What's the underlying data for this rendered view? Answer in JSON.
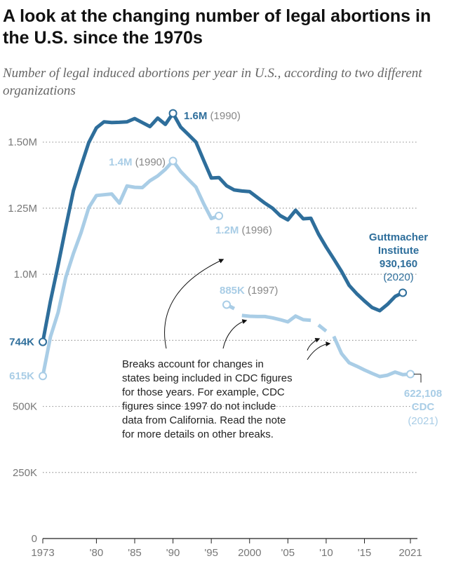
{
  "title": "A look at the changing number of legal abortions in the U.S. since the 1970s",
  "subtitle": "Number of legal induced abortions per year in U.S., according to two different organizations",
  "colors": {
    "guttmacher": "#2e6e9b",
    "cdc": "#a9cde6",
    "grid": "#999999",
    "axis": "#777777",
    "label_gray": "#888888",
    "text": "#222222"
  },
  "chart_data": {
    "type": "line",
    "xlim": [
      1973,
      2021
    ],
    "ylim": [
      0,
      1600000
    ],
    "ylabel": "",
    "xlabel": "",
    "y_ticks": [
      0,
      250000,
      500000,
      750000,
      1000000,
      1250000,
      1500000
    ],
    "y_tick_labels": [
      "0",
      "250K",
      "500K",
      "",
      "1.0M",
      "1.25M",
      "1.50M"
    ],
    "x_ticks": [
      1973,
      1980,
      1985,
      1990,
      1995,
      2000,
      2005,
      2010,
      2015,
      2021
    ],
    "x_tick_labels": [
      "1973",
      "'80",
      "'85",
      "'90",
      "'95",
      "2000",
      "'05",
      "'10",
      "'15",
      "2021"
    ],
    "grid": true,
    "series": [
      {
        "name": "Guttmacher Institute",
        "color": "#2e6e9b",
        "segments": [
          {
            "x": [
              1973,
              1974,
              1975,
              1976,
              1977,
              1978,
              1979,
              1980,
              1981,
              1982,
              1983,
              1984,
              1985,
              1986,
              1987,
              1988,
              1989,
              1990,
              1991,
              1992,
              1993,
              1994,
              1995,
              1996,
              1997,
              1998,
              1999,
              2000,
              2001,
              2002,
              2003,
              2004,
              2005,
              2006,
              2007,
              2008,
              2009,
              2010,
              2011,
              2012,
              2013,
              2014,
              2015,
              2016,
              2017,
              2018,
              2019,
              2020
            ],
            "y": [
              744000,
              898000,
              1034000,
              1179000,
              1317000,
              1410000,
              1498000,
              1554000,
              1577000,
              1574000,
              1575000,
              1577000,
              1589000,
              1574000,
              1559000,
              1591000,
              1567000,
              1609000,
              1557000,
              1529000,
              1500000,
              1431000,
              1364000,
              1366000,
              1335000,
              1319000,
              1315000,
              1313000,
              1291000,
              1269000,
              1250000,
              1222000,
              1206000,
              1242000,
              1210000,
              1212000,
              1152000,
              1103000,
              1058000,
              1011000,
              958000,
              926000,
              899000,
              874000,
              862000,
              886000,
              916000,
              930160
            ]
          }
        ]
      },
      {
        "name": "CDC",
        "color": "#a9cde6",
        "segments": [
          {
            "x": [
              1973,
              1974,
              1975,
              1976,
              1977,
              1978,
              1979,
              1980,
              1981,
              1982,
              1983,
              1984,
              1985,
              1986,
              1987,
              1988,
              1989,
              1990,
              1991,
              1992,
              1993,
              1994,
              1995,
              1996
            ],
            "y": [
              615000,
              763000,
              855000,
              989000,
              1079000,
              1158000,
              1252000,
              1298000,
              1301000,
              1304000,
              1269000,
              1334000,
              1329000,
              1328000,
              1354000,
              1372000,
              1397000,
              1429000,
              1389000,
              1359000,
              1330000,
              1267000,
              1211000,
              1221000
            ]
          },
          {
            "x": [
              1997,
              1998
            ],
            "y": [
              885000,
              870000
            ]
          },
          {
            "x": [
              1999,
              2000,
              2001,
              2002,
              2003,
              2004,
              2005,
              2006,
              2007,
              2008
            ],
            "y": [
              844000,
              841000,
              840000,
              840000,
              835000,
              828000,
              820000,
              842000,
              828000,
              826000
            ]
          },
          {
            "x": [
              2009,
              2010
            ],
            "y": [
              808000,
              785000
            ]
          },
          {
            "x": [
              2011,
              2012,
              2013,
              2014,
              2015,
              2016,
              2017,
              2018,
              2019,
              2020,
              2021
            ],
            "y": [
              765000,
              700000,
              665000,
              652000,
              638000,
              625000,
              613000,
              618000,
              630000,
              620000,
              622108
            ]
          }
        ]
      }
    ],
    "annotations": {
      "guttmacher_start": "744K",
      "cdc_start": "615K",
      "g_peak_value": "1.6M",
      "g_peak_year": "(1990)",
      "c_peak_value": "1.4M",
      "c_peak_year": "(1990)",
      "c_1996_value": "1.2M",
      "c_1996_year": "(1996)",
      "c_1997_value": "885K",
      "c_1997_year": "(1997)",
      "g_end_name_1": "Guttmacher",
      "g_end_name_2": "Institute",
      "g_end_value": "930,160",
      "g_end_year": "(2020)",
      "c_end_value": "622,108",
      "c_end_name": "CDC",
      "c_end_year": "(2021)",
      "note_lines": [
        "Breaks account for changes in",
        "states being included in CDC figures",
        "for those years. For example, CDC",
        "figures since 1997 do not include",
        "data from California. Read the note",
        "for more details on other breaks."
      ]
    }
  }
}
